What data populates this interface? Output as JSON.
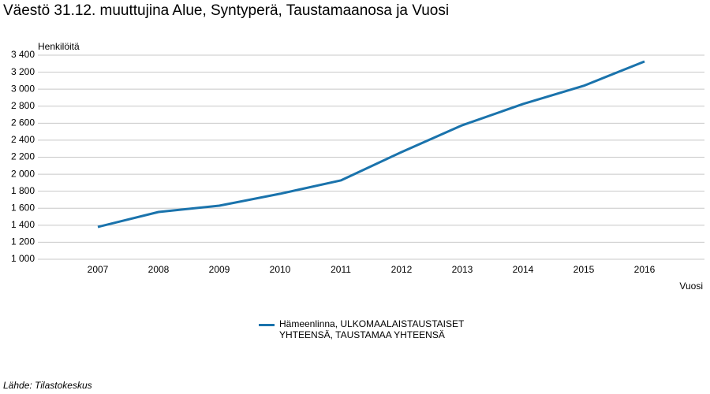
{
  "chart_data": {
    "type": "line",
    "title": "Väestö 31.12. muuttujina Alue, Syntyperä, Taustamaanosa ja Vuosi",
    "y_label": "Henkilöitä",
    "x_label": "Vuosi",
    "source": "Lähde: Tilastokeskus",
    "categories": [
      "2007",
      "2008",
      "2009",
      "2010",
      "2011",
      "2012",
      "2013",
      "2014",
      "2015",
      "2016"
    ],
    "series": [
      {
        "name": "Hämeenlinna, ULKOMAALAISTAUSTAISET YHTEENSÄ, TAUSTAMAA YHTEENSÄ",
        "color": "#1a73ac",
        "values": [
          1380,
          1556,
          1630,
          1770,
          1927,
          2260,
          2576,
          2826,
          3040,
          3326
        ]
      }
    ],
    "ylim": [
      1000,
      3400
    ],
    "yticks": [
      {
        "value": 1000,
        "label": "1 000"
      },
      {
        "value": 1200,
        "label": "1 200"
      },
      {
        "value": 1400,
        "label": "1 400"
      },
      {
        "value": 1600,
        "label": "1 600"
      },
      {
        "value": 1800,
        "label": "1 800"
      },
      {
        "value": 2000,
        "label": "2 000"
      },
      {
        "value": 2200,
        "label": "2 200"
      },
      {
        "value": 2400,
        "label": "2 400"
      },
      {
        "value": 2600,
        "label": "2 600"
      },
      {
        "value": 2800,
        "label": "2 800"
      },
      {
        "value": 3000,
        "label": "3 000"
      },
      {
        "value": 3200,
        "label": "3 200"
      },
      {
        "value": 3400,
        "label": "3 400"
      }
    ],
    "grid": true
  }
}
